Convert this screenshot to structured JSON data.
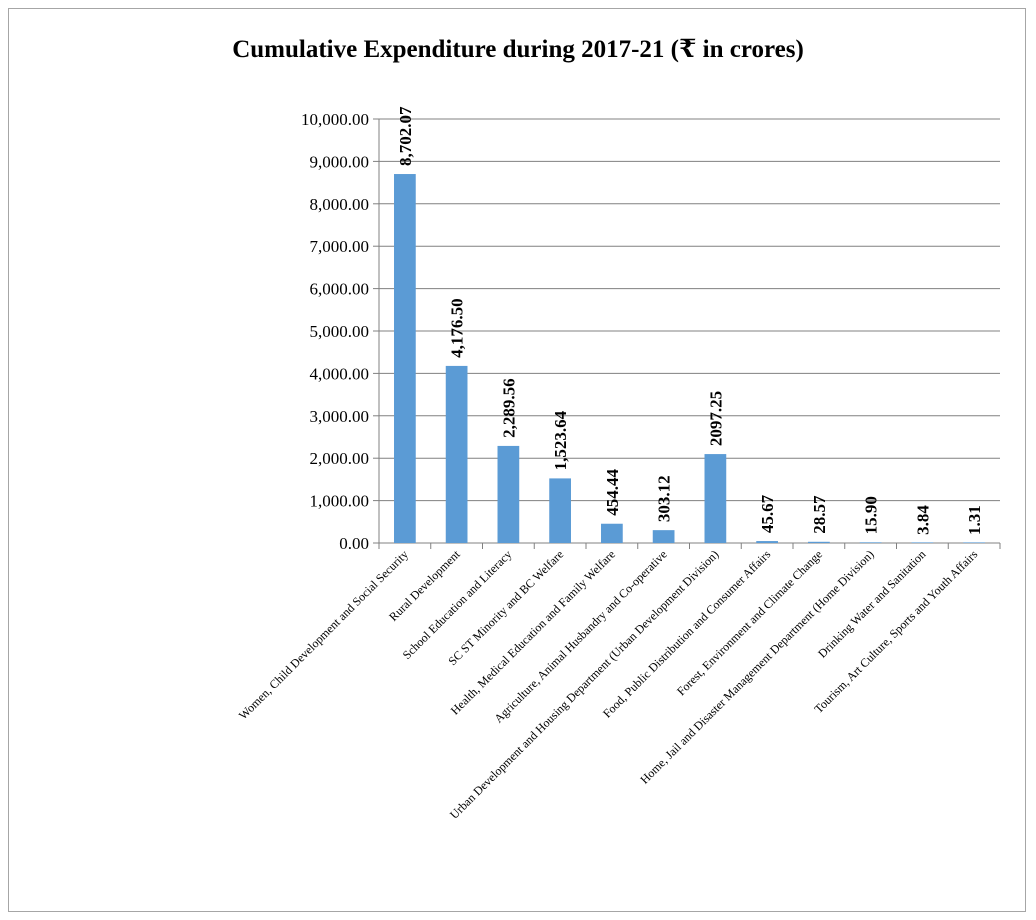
{
  "chart_data": {
    "type": "bar",
    "title": "Cumulative Expenditure during 2017-21 (₹ in crores)",
    "xlabel": "",
    "ylabel": "",
    "ylim": [
      0,
      10000
    ],
    "ytick_values": [
      0,
      1000,
      2000,
      3000,
      4000,
      5000,
      6000,
      7000,
      8000,
      9000,
      10000
    ],
    "ytick_labels": [
      "0.00",
      "1,000.00",
      "2,000.00",
      "3,000.00",
      "4,000.00",
      "5,000.00",
      "6,000.00",
      "7,000.00",
      "8,000.00",
      "9,000.00",
      "10,000.00"
    ],
    "categories": [
      "Women, Child Development and Social Security",
      "Rural Development",
      "School Education and Literacy",
      "SC ST Minority and BC Welfare",
      "Health, Medical Education and Family Welfare",
      "Agriculture, Animal Husbandry and Co-operative",
      "Urban Development and Housing Department (Urban Development Division)",
      "Food, Public Distribution and Consumer Affairs",
      "Forest, Environment and Climate Change",
      "Home, Jail and Disaster Management Department (Home Division)",
      "Drinking Water and Sanitation",
      "Tourism, Art Culture, Sports and Youth Affairs"
    ],
    "values": [
      8702.07,
      4176.5,
      2289.56,
      1523.64,
      454.44,
      303.12,
      2097.25,
      45.67,
      28.57,
      15.9,
      3.84,
      1.31
    ],
    "data_labels": [
      "8,702.07",
      "4,176.50",
      "2,289.56",
      "1,523.64",
      "454.44",
      "303.12",
      "2097.25",
      "45.67",
      "28.57",
      "15.90",
      "3.84",
      "1.31"
    ],
    "bar_color": "#5b9bd5",
    "grid": true,
    "legend": "none"
  }
}
